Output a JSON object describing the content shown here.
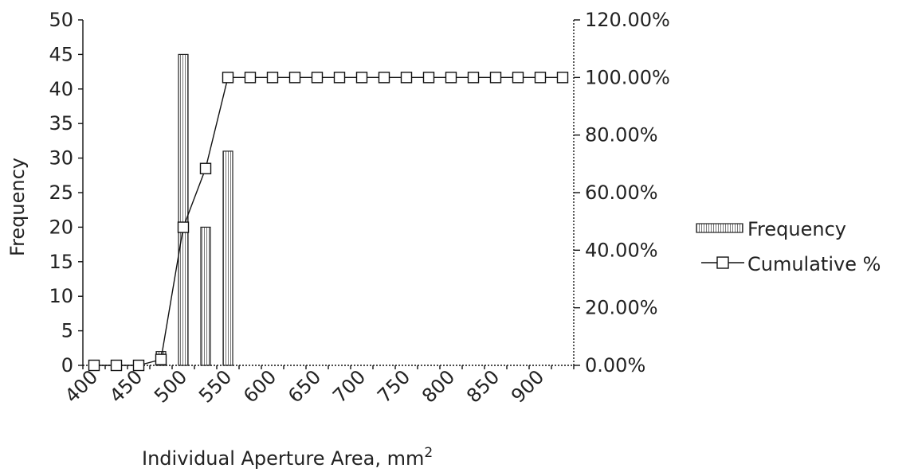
{
  "chart_data": {
    "type": "bar",
    "title": "",
    "xlabel": "Individual Aperture Area, mm",
    "xlabel_superscript": "2",
    "ylabel": "Frequency",
    "y2label": "",
    "ylim": [
      0,
      50
    ],
    "y2lim": [
      0,
      1.2
    ],
    "y_ticks": [
      "0",
      "5",
      "10",
      "15",
      "20",
      "25",
      "30",
      "35",
      "40",
      "45",
      "50"
    ],
    "y2_ticks": [
      "0.00%",
      "20.00%",
      "40.00%",
      "60.00%",
      "80.00%",
      "100.00%",
      "120.00%"
    ],
    "x_tick_labels": [
      "400",
      "450",
      "500",
      "550",
      "600",
      "650",
      "700",
      "750",
      "800",
      "850",
      "900"
    ],
    "categories": [
      400,
      425,
      450,
      475,
      500,
      525,
      550,
      575,
      600,
      625,
      650,
      675,
      700,
      725,
      750,
      775,
      800,
      825,
      850,
      875,
      900,
      925
    ],
    "series": [
      {
        "name": "Frequency",
        "type": "bar",
        "axis": "left",
        "values": [
          0,
          0,
          0,
          2,
          45,
          20,
          31,
          0,
          0,
          0,
          0,
          0,
          0,
          0,
          0,
          0,
          0,
          0,
          0,
          0,
          0,
          0
        ]
      },
      {
        "name": "Cumulative %",
        "type": "line",
        "axis": "right",
        "marker": "square",
        "values": [
          0.0,
          0.0,
          0.0,
          0.0204,
          0.4796,
          0.6837,
          1.0,
          1.0,
          1.0,
          1.0,
          1.0,
          1.0,
          1.0,
          1.0,
          1.0,
          1.0,
          1.0,
          1.0,
          1.0,
          1.0,
          1.0,
          1.0
        ]
      }
    ],
    "legend_position": "right",
    "grid": false,
    "colors": {
      "ink": "#111111",
      "background": "#ffffff"
    }
  }
}
